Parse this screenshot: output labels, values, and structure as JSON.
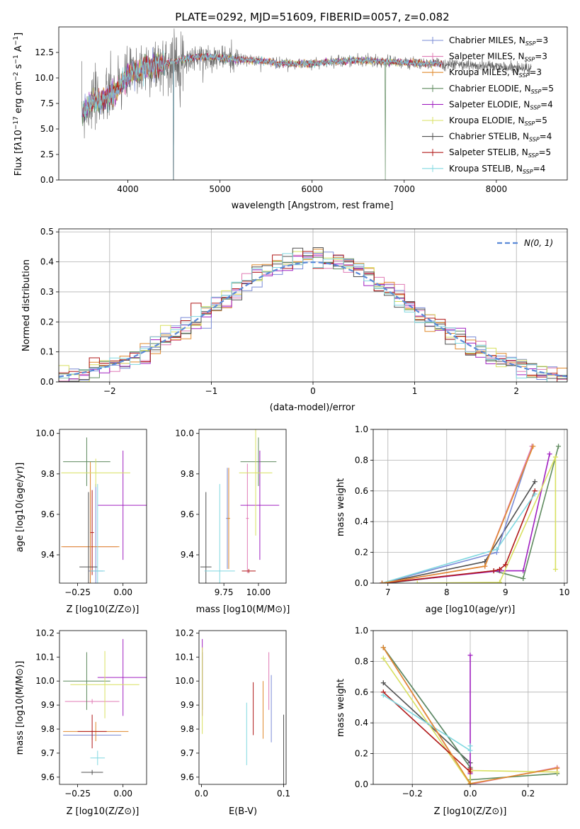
{
  "figure": {
    "title": "PLATE=0292, MJD=51609, FIBERID=0057, z=0.082",
    "series_colors": [
      "#7a8bd6",
      "#e07bb5",
      "#e08a2e",
      "#5e8a5e",
      "#a020c0",
      "#d8e060",
      "#505050",
      "#b01818",
      "#80d8e0"
    ]
  },
  "chart_data": [
    {
      "type": "line",
      "id": "spectrum",
      "xlabel": "wavelength [Angstrom, rest frame]",
      "ylabel": "Flux [f_λ 10^-17 erg cm^-2 s^-1 A^-1]",
      "xlim": [
        3250,
        8770
      ],
      "ylim": [
        0,
        15
      ],
      "xticks": [
        4000,
        5000,
        6000,
        7000,
        8000
      ],
      "yticks": [
        0.0,
        2.5,
        5.0,
        7.5,
        10.0,
        12.5
      ],
      "grid": false,
      "legend_position": "upper-right",
      "legend": [
        "Chabrier MILES, N_SSP=3",
        "Salpeter MILES, N_SSP=3",
        "Kroupa MILES, N_SSP=3",
        "Chabrier ELODIE, N_SSP=5",
        "Salpeter ELODIE, N_SSP=4",
        "Kroupa ELODIE, N_SSP=5",
        "Chabrier STELIB, N_SSP=4",
        "Salpeter STELIB, N_SSP=5",
        "Kroupa STELIB, N_SSP=4"
      ],
      "continuum": {
        "x": [
          3500,
          3600,
          3700,
          3800,
          3900,
          4000,
          4100,
          4200,
          4300,
          4400,
          4600,
          4800,
          5000,
          5200,
          5400,
          5600,
          5800,
          6000,
          6200,
          6400,
          6600,
          6800,
          7000,
          7200,
          7400,
          7800,
          8200,
          8500
        ],
        "y": [
          6.5,
          7.5,
          7.8,
          8.2,
          9.0,
          10.2,
          10.6,
          11.0,
          11.2,
          11.4,
          11.8,
          12.1,
          12.0,
          11.8,
          11.7,
          11.5,
          11.4,
          11.4,
          11.6,
          11.7,
          11.7,
          11.6,
          11.5,
          11.4,
          11.4,
          11.2,
          11.0,
          10.9
        ]
      }
    },
    {
      "type": "line",
      "id": "residuals",
      "xlabel": "(data-model)/error",
      "ylabel": "Normed distribution",
      "xlim": [
        -2.5,
        2.5
      ],
      "ylim": [
        0,
        0.51
      ],
      "xticks": [
        -2,
        -1,
        0,
        1,
        2
      ],
      "yticks": [
        0.0,
        0.1,
        0.2,
        0.3,
        0.4,
        0.5
      ],
      "grid": true,
      "legend_position": "upper-right",
      "legend": [
        "N(0, 1)"
      ],
      "gaussian": {
        "mu": 0,
        "sigma": 1,
        "color": "#5b8ad8"
      },
      "bin_width": 0.1
    },
    {
      "type": "scatter",
      "id": "age-vs-Z",
      "xlabel": "Z [log10(Z/Z⊙)]",
      "ylabel": "age  [log10(age/yr)]",
      "xlim": [
        -0.35,
        0.13
      ],
      "ylim": [
        9.26,
        10.02
      ],
      "xticks": [
        -0.25,
        0.0
      ],
      "xticklabels": [
        "−0.25",
        "0.00"
      ],
      "yticks": [
        9.4,
        9.6,
        9.8,
        10.0
      ],
      "grid": false,
      "points": [
        {
          "x": -0.15,
          "y": 9.32,
          "xerr": 0.04,
          "yerr": 0.43
        },
        {
          "x": -0.18,
          "y": 9.44,
          "xerr": 0.15,
          "yerr": 0.4
        },
        {
          "x": -0.18,
          "y": 9.44,
          "xerr": 0.16,
          "yerr": 0.42
        },
        {
          "x": -0.2,
          "y": 9.86,
          "xerr": 0.13,
          "yerr": 0.12
        },
        {
          "x": 0.0,
          "y": 9.645,
          "xerr": 0.14,
          "yerr": 0.27
        },
        {
          "x": -0.15,
          "y": 9.805,
          "xerr": 0.19,
          "yerr": 0.07
        },
        {
          "x": -0.19,
          "y": 9.34,
          "xerr": 0.05,
          "yerr": 0.37
        },
        {
          "x": -0.17,
          "y": 9.51,
          "xerr": 0.01,
          "yerr": 0.21
        },
        {
          "x": -0.14,
          "y": 9.32,
          "xerr": 0.04,
          "yerr": 0.43
        }
      ]
    },
    {
      "type": "scatter",
      "id": "age-vs-mass",
      "xlabel": "mass [log10(M/M⊙)]",
      "ylabel": "",
      "xlim": [
        9.57,
        10.2
      ],
      "ylim": [
        9.26,
        10.02
      ],
      "xticks": [
        9.75,
        10.0
      ],
      "xticklabels": [
        "9.75",
        "10.00"
      ],
      "yticks": [
        9.4,
        9.6,
        9.8,
        10.0
      ],
      "grid": false,
      "points": [
        {
          "x": 9.775,
          "y": 9.58,
          "xerr": 0.01,
          "yerr": 0.25
        },
        {
          "x": 9.92,
          "y": 9.58,
          "xerr": 0.01,
          "yerr": 0.27
        },
        {
          "x": 9.785,
          "y": 9.58,
          "xerr": 0.01,
          "yerr": 0.25
        },
        {
          "x": 10.0,
          "y": 9.86,
          "xerr": 0.13,
          "yerr": 0.12
        },
        {
          "x": 10.01,
          "y": 9.645,
          "xerr": 0.14,
          "yerr": 0.27
        },
        {
          "x": 9.98,
          "y": 9.805,
          "xerr": 0.12,
          "yerr": 0.31
        },
        {
          "x": 9.62,
          "y": 9.34,
          "xerr": 0.04,
          "yerr": 0.37
        },
        {
          "x": 9.93,
          "y": 9.32,
          "xerr": 0.05,
          "yerr": 0.01
        },
        {
          "x": 9.72,
          "y": 9.32,
          "xerr": 0.11,
          "yerr": 0.43
        }
      ]
    },
    {
      "type": "line",
      "id": "mass-weight-vs-age",
      "xlabel": "age  [log10(age/yr)]",
      "ylabel": "mass weight",
      "xlim": [
        6.75,
        10.05
      ],
      "ylim": [
        0,
        1.0
      ],
      "xticks": [
        7,
        8,
        9,
        10
      ],
      "yticks": [
        0.0,
        0.2,
        0.4,
        0.6,
        0.8,
        1.0
      ],
      "grid": true,
      "series": [
        {
          "x": [
            6.9,
            8.85,
            9.45
          ],
          "y": [
            0.0,
            0.2,
            0.89
          ]
        },
        {
          "x": [
            6.9,
            8.65,
            9.45
          ],
          "y": [
            0.0,
            0.11,
            0.89
          ]
        },
        {
          "x": [
            6.9,
            8.65,
            9.47
          ],
          "y": [
            0.0,
            0.11,
            0.89
          ]
        },
        {
          "x": [
            7.0,
            8.8,
            9.3,
            9.9
          ],
          "y": [
            0.0,
            0.08,
            0.03,
            0.89
          ]
        },
        {
          "x": [
            6.9,
            8.9,
            9.3,
            9.75
          ],
          "y": [
            0.0,
            0.08,
            0.08,
            0.84
          ]
        },
        {
          "x": [
            7.5,
            8.9,
            9.85,
            9.85
          ],
          "y": [
            0.0,
            0.005,
            0.82,
            0.09
          ]
        },
        {
          "x": [
            6.9,
            8.65,
            9.5
          ],
          "y": [
            0.0,
            0.14,
            0.66
          ]
        },
        {
          "x": [
            6.9,
            8.8,
            8.9,
            9.0,
            9.5
          ],
          "y": [
            0.0,
            0.08,
            0.09,
            0.12,
            0.6
          ]
        },
        {
          "x": [
            6.9,
            8.85,
            9.5
          ],
          "y": [
            0.0,
            0.22,
            0.58
          ]
        }
      ]
    },
    {
      "type": "scatter",
      "id": "mass-vs-Z",
      "xlabel": "Z [log10(Z/Z⊙)]",
      "ylabel": "mass [log10(M/M⊙)]",
      "xlim": [
        -0.35,
        0.13
      ],
      "ylim": [
        9.57,
        10.21
      ],
      "xticks": [
        -0.25,
        0.0
      ],
      "xticklabels": [
        "−0.25",
        "0.00"
      ],
      "yticks": [
        9.6,
        9.7,
        9.8,
        9.9,
        10.0,
        10.1,
        10.2
      ],
      "grid": false,
      "points": [
        {
          "x": -0.17,
          "y": 9.775,
          "xerr": 0.16,
          "yerr": 0.02
        },
        {
          "x": -0.17,
          "y": 9.915,
          "xerr": 0.15,
          "yerr": 0.01
        },
        {
          "x": -0.15,
          "y": 9.79,
          "xerr": 0.18,
          "yerr": 0.04
        },
        {
          "x": -0.2,
          "y": 10.0,
          "xerr": 0.13,
          "yerr": 0.12
        },
        {
          "x": 0.0,
          "y": 10.015,
          "xerr": 0.14,
          "yerr": 0.16
        },
        {
          "x": -0.1,
          "y": 9.985,
          "xerr": 0.19,
          "yerr": 0.14
        },
        {
          "x": -0.17,
          "y": 9.62,
          "xerr": 0.06,
          "yerr": 0.01
        },
        {
          "x": -0.17,
          "y": 9.79,
          "xerr": 0.08,
          "yerr": 0.07
        },
        {
          "x": -0.14,
          "y": 9.68,
          "xerr": 0.04,
          "yerr": 0.03
        }
      ]
    },
    {
      "type": "scatter",
      "id": "mass-vs-EBV",
      "xlabel": "E(B-V)",
      "ylabel": "",
      "xlim": [
        -0.003,
        0.103
      ],
      "ylim": [
        9.57,
        10.21
      ],
      "xticks": [
        0.0,
        0.1
      ],
      "xticklabels": [
        "0.0",
        "0.1"
      ],
      "yticks": [
        9.6,
        9.7,
        9.8,
        9.9,
        10.0,
        10.1,
        10.2
      ],
      "grid": false,
      "points": [
        {
          "x": 0.085,
          "y": 9.885,
          "xerr": 0,
          "yerr": 0.14
        },
        {
          "x": 0.082,
          "y": 10.0,
          "xerr": 0,
          "yerr": 0.12
        },
        {
          "x": 0.075,
          "y": 9.88,
          "xerr": 0,
          "yerr": 0.12
        },
        {
          "x": 0.001,
          "y": 10.0,
          "xerr": 0,
          "yerr": 0.12
        },
        {
          "x": 0.001,
          "y": 10.015,
          "xerr": 0,
          "yerr": 0.16
        },
        {
          "x": 0.001,
          "y": 9.96,
          "xerr": 0,
          "yerr": 0.18
        },
        {
          "x": 0.1,
          "y": 9.71,
          "xerr": 0,
          "yerr": 0.15
        },
        {
          "x": 0.063,
          "y": 9.885,
          "xerr": 0,
          "yerr": 0.11
        },
        {
          "x": 0.055,
          "y": 9.78,
          "xerr": 0,
          "yerr": 0.13
        }
      ]
    },
    {
      "type": "line",
      "id": "mass-weight-vs-Z",
      "xlabel": "Z [log10(Z/Z⊙)]",
      "ylabel": "mass weight",
      "xlim": [
        -0.335,
        0.335
      ],
      "ylim": [
        0,
        1.0
      ],
      "xticks": [
        -0.2,
        0.0,
        0.2
      ],
      "xticklabels": [
        "−0.2",
        "0.0",
        "0.2"
      ],
      "yticks": [
        0.0,
        0.2,
        0.4,
        0.6,
        0.8,
        1.0
      ],
      "grid": true,
      "series": [
        {
          "x": [
            -0.3,
            0.0
          ],
          "y": [
            0.89,
            0.11
          ]
        },
        {
          "x": [
            -0.3,
            0.0,
            0.3
          ],
          "y": [
            0.89,
            0.0,
            0.11
          ]
        },
        {
          "x": [
            -0.3,
            0.0,
            0.3
          ],
          "y": [
            0.89,
            0.005,
            0.105
          ]
        },
        {
          "x": [
            -0.3,
            0.0,
            0.0,
            0.3
          ],
          "y": [
            0.89,
            0.11,
            0.03,
            0.07
          ]
        },
        {
          "x": [
            0.0,
            0.0
          ],
          "y": [
            0.07,
            0.84
          ]
        },
        {
          "x": [
            -0.3,
            0.0,
            0.0,
            0.3
          ],
          "y": [
            0.82,
            0.0,
            0.09,
            0.08
          ]
        },
        {
          "x": [
            -0.3,
            0.0,
            0.0
          ],
          "y": [
            0.66,
            0.14,
            0.0
          ]
        },
        {
          "x": [
            -0.3,
            0.0,
            0.0
          ],
          "y": [
            0.6,
            0.08,
            0.1
          ]
        },
        {
          "x": [
            -0.3,
            0.0,
            0.0
          ],
          "y": [
            0.58,
            0.22,
            0.25
          ]
        }
      ]
    }
  ]
}
